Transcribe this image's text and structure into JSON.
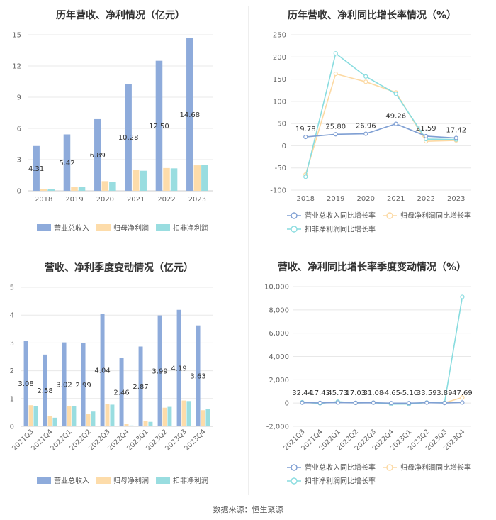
{
  "colors": {
    "revenue": "#8eabdb",
    "net_profit": "#fddcaa",
    "deducted_net_profit": "#99dde0",
    "revenue_line": "#7f9fd3",
    "net_profit_line": "#fcd9a3",
    "deducted_line": "#88dcdf"
  },
  "footer": "数据来源：恒生聚源",
  "chart_data": [
    {
      "type": "bar",
      "title": "历年营收、净利情况（亿元）",
      "categories": [
        "2018",
        "2019",
        "2020",
        "2021",
        "2022",
        "2023"
      ],
      "series": [
        {
          "name": "营业总收入",
          "values": [
            4.31,
            5.42,
            6.89,
            10.28,
            12.5,
            14.68
          ]
        },
        {
          "name": "归母净利润",
          "values": [
            0.17,
            0.38,
            0.93,
            2.02,
            2.19,
            2.45
          ]
        },
        {
          "name": "扣非净利润",
          "values": [
            0.14,
            0.36,
            0.88,
            1.93,
            2.16,
            2.46
          ]
        }
      ],
      "data_labels": [
        "4.31",
        "5.42",
        "6.89",
        "10.28",
        "12.50",
        "14.68"
      ],
      "y_ticks": [
        "0",
        "3",
        "6",
        "9",
        "12",
        "15"
      ],
      "ylim": [
        0,
        15
      ],
      "grid": true,
      "legend": "bottom"
    },
    {
      "type": "line",
      "title": "历年营收、净利同比增长率情况（%）",
      "categories": [
        "2018",
        "2019",
        "2020",
        "2021",
        "2022",
        "2023"
      ],
      "series": [
        {
          "name": "营业总收入同比增长率",
          "values": [
            19.78,
            25.8,
            26.96,
            49.26,
            21.59,
            17.42
          ]
        },
        {
          "name": "归母净利润同比增长率",
          "values": [
            -65,
            162,
            144,
            120,
            10,
            12
          ]
        },
        {
          "name": "扣非净利润同比增长率",
          "values": [
            -70,
            208,
            156,
            117,
            15,
            14
          ]
        }
      ],
      "data_labels": [
        "19.78",
        "25.80",
        "26.96",
        "49.26",
        "21.59",
        "17.42"
      ],
      "y_ticks": [
        "250",
        "200",
        "150",
        "100",
        "50",
        "0",
        "-50",
        "-100"
      ],
      "ylim": [
        -100,
        250
      ],
      "grid": true,
      "legend": "bottom"
    },
    {
      "type": "bar",
      "title": "营收、净利季度变动情况（亿元）",
      "categories": [
        "2021Q3",
        "2021Q4",
        "2022Q1",
        "2022Q2",
        "2022Q3",
        "2022Q4",
        "2023Q1",
        "2023Q2",
        "2023Q3",
        "2023Q4"
      ],
      "series": [
        {
          "name": "营业总收入",
          "values": [
            3.08,
            2.58,
            3.02,
            2.99,
            4.04,
            2.46,
            2.87,
            3.99,
            4.19,
            3.63
          ]
        },
        {
          "name": "归母净利润",
          "values": [
            0.76,
            0.38,
            0.73,
            0.44,
            0.81,
            0.08,
            0.19,
            0.67,
            0.93,
            0.58
          ]
        },
        {
          "name": "扣非净利润",
          "values": [
            0.72,
            0.31,
            0.74,
            0.53,
            0.78,
            0.03,
            0.16,
            0.7,
            0.91,
            0.63
          ]
        }
      ],
      "data_labels": [
        "3.08",
        "2.58",
        "3.02",
        "2.99",
        "4.04",
        "2.46",
        "2.87",
        "3.99",
        "4.19",
        "3.63"
      ],
      "y_ticks": [
        "0",
        "1",
        "2",
        "3",
        "4",
        "5"
      ],
      "ylim": [
        0,
        5
      ],
      "grid": true,
      "legend": "bottom"
    },
    {
      "type": "line",
      "title": "营收、净利同比增长率季度变动情况（%）",
      "categories": [
        "2021Q3",
        "2021Q4",
        "2022Q1",
        "2022Q2",
        "2022Q3",
        "2022Q4",
        "2023Q1",
        "2023Q2",
        "2023Q3",
        "2023Q4"
      ],
      "series": [
        {
          "name": "营业总收入同比增长率",
          "values": [
            32.44,
            17.43,
            45.73,
            17.03,
            31.08,
            -4.65,
            -5.1,
            33.59,
            3.89,
            47.69
          ]
        },
        {
          "name": "归母净利润同比增长率",
          "values": [
            60,
            -20,
            110,
            10,
            40,
            -95,
            -80,
            45,
            20,
            480
          ]
        },
        {
          "name": "扣非净利润同比增长率",
          "values": [
            70,
            -25,
            120,
            15,
            35,
            -97,
            -85,
            50,
            25,
            9120
          ]
        }
      ],
      "data_labels": [
        "32.44",
        "17.43",
        "45.73",
        "17.03",
        "31.08",
        "-4.65",
        "-5.10",
        "33.59",
        "3.89",
        "47.69"
      ],
      "y_ticks": [
        "10,000",
        "8,000",
        "6,000",
        "4,000",
        "2,000",
        "0",
        "-2,000"
      ],
      "ylim": [
        -2000,
        10000
      ],
      "grid": true,
      "legend": "bottom"
    }
  ]
}
